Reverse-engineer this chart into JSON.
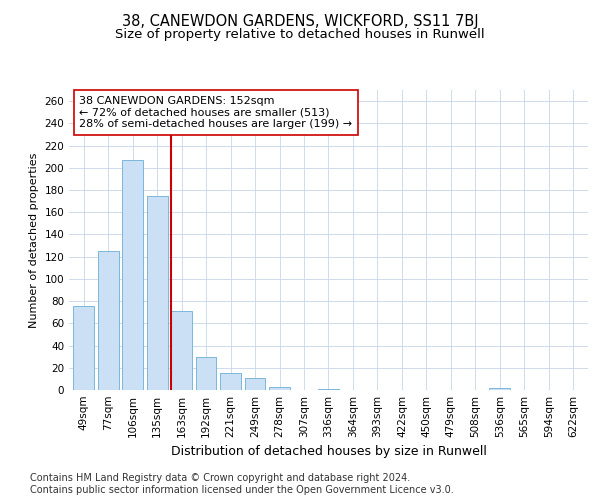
{
  "title": "38, CANEWDON GARDENS, WICKFORD, SS11 7BJ",
  "subtitle": "Size of property relative to detached houses in Runwell",
  "xlabel": "Distribution of detached houses by size in Runwell",
  "ylabel": "Number of detached properties",
  "categories": [
    "49sqm",
    "77sqm",
    "106sqm",
    "135sqm",
    "163sqm",
    "192sqm",
    "221sqm",
    "249sqm",
    "278sqm",
    "307sqm",
    "336sqm",
    "364sqm",
    "393sqm",
    "422sqm",
    "450sqm",
    "479sqm",
    "508sqm",
    "536sqm",
    "565sqm",
    "594sqm",
    "622sqm"
  ],
  "values": [
    76,
    125,
    207,
    175,
    71,
    30,
    15,
    11,
    3,
    0,
    1,
    0,
    0,
    0,
    0,
    0,
    0,
    2,
    0,
    0,
    0
  ],
  "bar_color": "#cce0f5",
  "bar_edge_color": "#6aaed6",
  "reference_line_color": "#cc0000",
  "annotation_text": "38 CANEWDON GARDENS: 152sqm\n← 72% of detached houses are smaller (513)\n28% of semi-detached houses are larger (199) →",
  "annotation_box_color": "#ffffff",
  "annotation_box_edge_color": "#cc0000",
  "ylim": [
    0,
    270
  ],
  "yticks": [
    0,
    20,
    40,
    60,
    80,
    100,
    120,
    140,
    160,
    180,
    200,
    220,
    240,
    260
  ],
  "footnote": "Contains HM Land Registry data © Crown copyright and database right 2024.\nContains public sector information licensed under the Open Government Licence v3.0.",
  "background_color": "#ffffff",
  "plot_background_color": "#ffffff",
  "grid_color": "#c8d4e8",
  "title_fontsize": 10.5,
  "subtitle_fontsize": 9.5,
  "xlabel_fontsize": 9,
  "ylabel_fontsize": 8,
  "tick_fontsize": 7.5,
  "annotation_fontsize": 8,
  "footnote_fontsize": 7
}
